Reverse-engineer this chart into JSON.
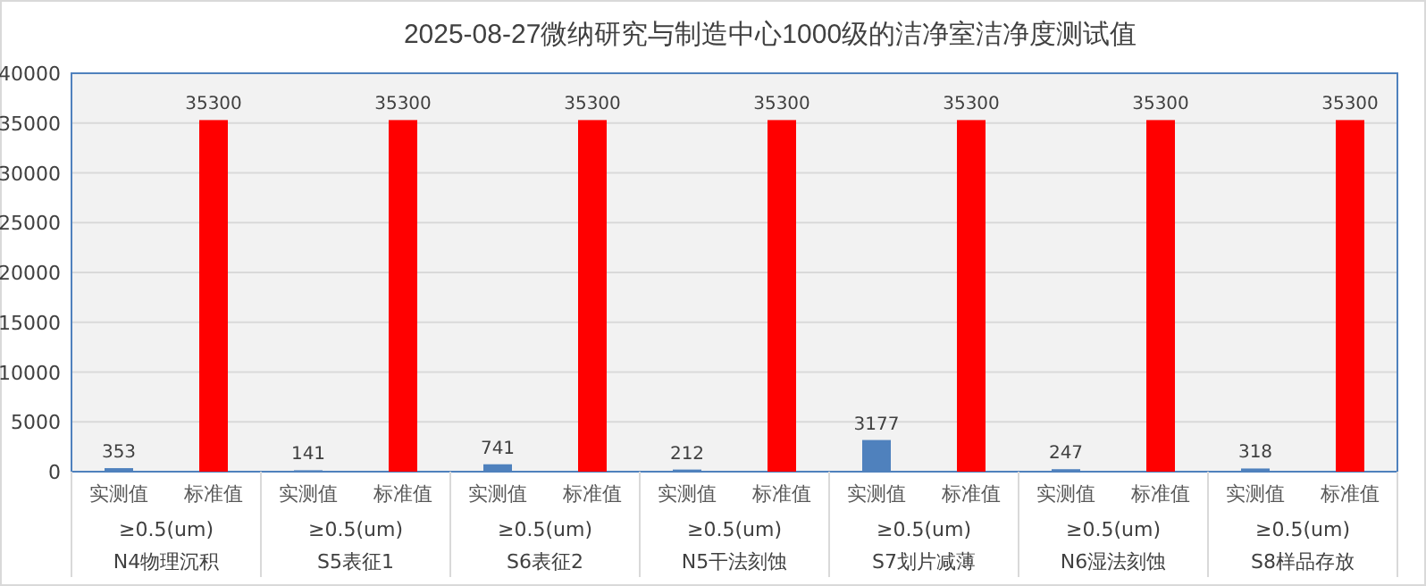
{
  "chart_data": {
    "type": "bar",
    "title": "2025-08-27微纳研究与制造中心1000级的洁净室洁净度测试值",
    "categories": [
      "≥0.5(um)\nN4物理沉积",
      "≥0.5(um)\nS5表征1",
      "≥0.5(um)\nS6表征2",
      "≥0.5(um)\nN5干法刻蚀",
      "≥0.5(um)\nS7划片减薄",
      "≥0.5(um)\nN6湿法刻蚀",
      "≥0.5(um)\nS8样品存放"
    ],
    "series": [
      {
        "name": "实测值",
        "color": "#4f81bd",
        "values": [
          353,
          141,
          741,
          212,
          3177,
          247,
          318
        ]
      },
      {
        "name": "标准值",
        "color": "#ff0000",
        "values": [
          35300,
          35300,
          35300,
          35300,
          35300,
          35300,
          35300
        ]
      }
    ],
    "ylim": [
      0,
      40000
    ],
    "yticks": [
      0,
      5000,
      10000,
      15000,
      20000,
      25000,
      30000,
      35000,
      40000
    ],
    "grid": "y",
    "data_labels": true
  }
}
